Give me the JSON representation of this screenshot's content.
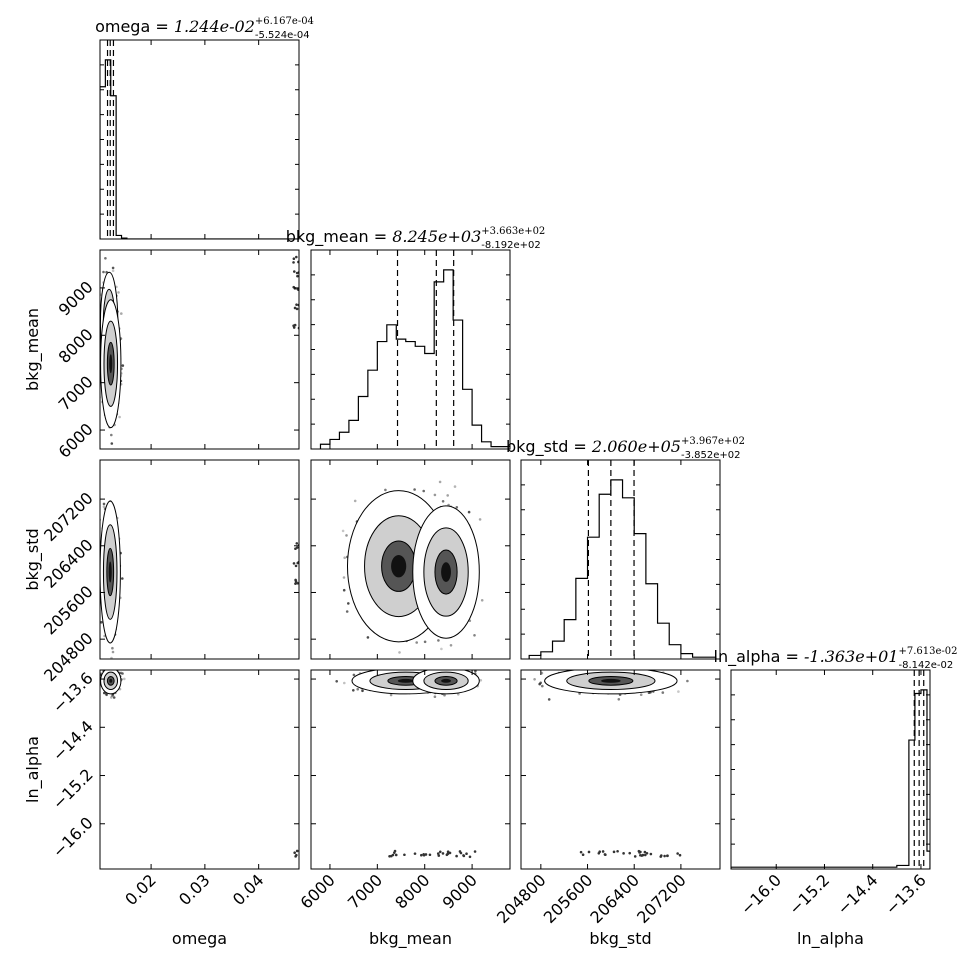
{
  "chart_data": {
    "type": "corner",
    "parameters": [
      "omega",
      "bkg_mean",
      "bkg_std",
      "ln_alpha"
    ],
    "axis_labels": {
      "omega": "omega",
      "bkg_mean": "bkg_mean",
      "bkg_std": "bkg_std",
      "ln_alpha": "ln_alpha"
    },
    "titles": {
      "omega": {
        "prefix": "omega = ",
        "value": "1.244e-02",
        "plus": "+6.167e-04",
        "minus": "-5.524e-04"
      },
      "bkg_mean": {
        "prefix": "bkg_mean = ",
        "value": "8.245e+03",
        "plus": "+3.663e+02",
        "minus": "-8.192e+02"
      },
      "bkg_std": {
        "prefix": "bkg_std = ",
        "value": "2.060e+05",
        "plus": "+3.967e+02",
        "minus": "-3.852e+02"
      },
      "ln_alpha": {
        "prefix": "ln_alpha = ",
        "value": "-1.363e+01",
        "plus": "+7.613e-02",
        "minus": "-8.142e-02"
      }
    },
    "ranges": {
      "omega": [
        0.0105,
        0.0475
      ],
      "bkg_mean": [
        5600,
        9800
      ],
      "bkg_std": [
        204460,
        207870
      ],
      "ln_alpha": [
        -16.75,
        -13.45
      ]
    },
    "ticks": {
      "omega": {
        "values": [
          0.02,
          0.03,
          0.04
        ],
        "labels": [
          "0.02",
          "0.03",
          "0.04"
        ]
      },
      "bkg_mean": {
        "values": [
          6000,
          7000,
          8000,
          9000
        ],
        "labels": [
          "6000",
          "7000",
          "8000",
          "9000"
        ]
      },
      "bkg_std": {
        "values": [
          204800,
          205600,
          206400,
          207200
        ],
        "labels": [
          "204800",
          "205600",
          "206400",
          "207200"
        ]
      },
      "ln_alpha": {
        "values": [
          -16.0,
          -15.2,
          -14.4,
          -13.6
        ],
        "labels": [
          "−16.0",
          "−15.2",
          "−14.4",
          "−13.6"
        ]
      }
    },
    "quantile_lines": {
      "omega": [
        0.0119,
        0.0124,
        0.013
      ],
      "bkg_mean": [
        7426,
        8245,
        8611
      ],
      "bkg_std": [
        205615,
        206000,
        206397
      ],
      "ln_alpha": [
        -13.711,
        -13.63,
        -13.554
      ]
    },
    "histograms": {
      "omega": {
        "edges": [
          0.0105,
          0.0115,
          0.0125,
          0.0135,
          0.0145,
          0.0155,
          0.0475
        ],
        "counts": [
          85,
          100,
          80,
          2,
          0.5,
          0
        ]
      },
      "bkg_mean": {
        "edges": [
          5800,
          6000,
          6200,
          6400,
          6600,
          6800,
          7000,
          7200,
          7400,
          7600,
          7800,
          8000,
          8200,
          8400,
          8600,
          8800,
          9000,
          9200,
          9400,
          9800
        ],
        "counts": [
          2,
          4,
          7,
          12,
          22,
          33,
          45,
          52,
          46,
          45,
          43,
          40,
          70,
          75,
          54,
          25,
          10,
          3,
          1
        ]
      },
      "bkg_std": {
        "edges": [
          204600,
          204800,
          205000,
          205200,
          205400,
          205600,
          205800,
          206000,
          206200,
          206400,
          206600,
          206800,
          207000,
          207200,
          207400,
          207800
        ],
        "counts": [
          2,
          4,
          10,
          22,
          45,
          68,
          92,
          100,
          90,
          70,
          42,
          20,
          8,
          3,
          1
        ]
      },
      "ln_alpha": {
        "edges": [
          -16.75,
          -14.0,
          -13.8,
          -13.7,
          -13.6,
          -13.5,
          -13.45
        ],
        "counts": [
          1,
          2,
          72,
          98,
          100,
          10
        ]
      }
    },
    "density_centers": {
      "bkg_mean_vs_omega": [
        {
          "x": 0.0122,
          "y": 8250,
          "sx": 0.0006,
          "sy": 400
        },
        {
          "x": 0.0125,
          "y": 7400,
          "sx": 0.0007,
          "sy": 500
        }
      ],
      "bkg_std_vs_omega": [
        {
          "x": 0.0124,
          "y": 205950,
          "sx": 0.0007,
          "sy": 450
        }
      ],
      "ln_alpha_vs_omega": [
        {
          "x": 0.0125,
          "y": -13.63,
          "sx": 0.0007,
          "sy": 0.08
        }
      ],
      "bkg_std_vs_bkg_mean": [
        {
          "x": 7450,
          "y": 206050,
          "sx": 400,
          "sy": 480
        },
        {
          "x": 8450,
          "y": 205950,
          "sx": 260,
          "sy": 420
        }
      ],
      "ln_alpha_vs_bkg_mean": [
        {
          "x": 7600,
          "y": -13.63,
          "sx": 420,
          "sy": 0.08
        },
        {
          "x": 8450,
          "y": -13.63,
          "sx": 260,
          "sy": 0.08
        }
      ],
      "ln_alpha_vs_bkg_std": [
        {
          "x": 206000,
          "y": -13.63,
          "sx": 420,
          "sy": 0.08
        }
      ]
    },
    "outliers": {
      "omega": 0.047,
      "bkg_mean": [
        8200,
        8600,
        9000,
        9300,
        9600
      ],
      "bkg_std": [
        205800,
        206100,
        206400
      ],
      "ln_alpha": -16.5
    },
    "grid": false,
    "legend": "none"
  }
}
